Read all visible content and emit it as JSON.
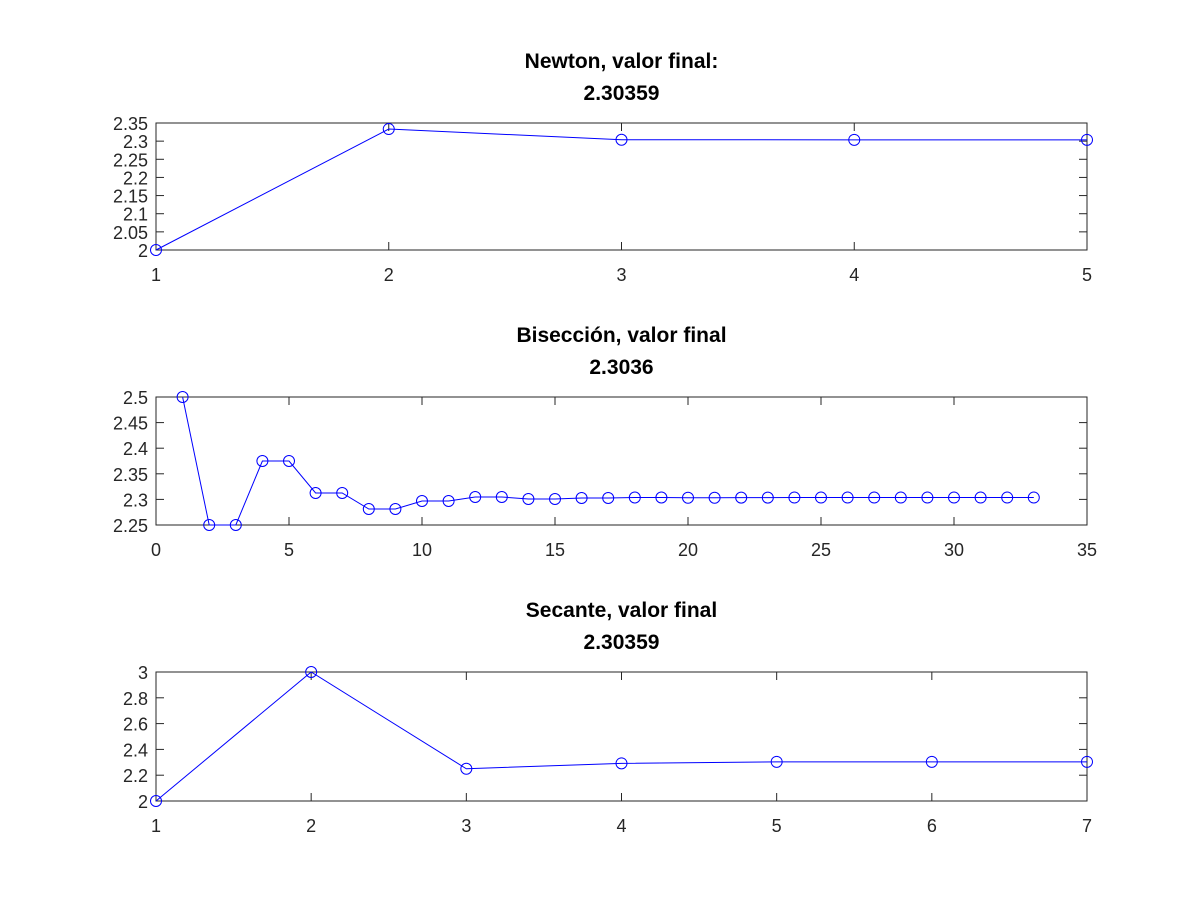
{
  "chart_data": [
    {
      "type": "line",
      "title_lines": [
        "Newton, valor final:",
        "2.30359"
      ],
      "xlabel": "",
      "ylabel": "",
      "xlim": [
        1,
        5
      ],
      "ylim": [
        2,
        2.35
      ],
      "xticks": [
        1,
        2,
        3,
        4,
        5
      ],
      "xtick_labels": [
        "1",
        "2",
        "3",
        "4",
        "5"
      ],
      "yticks": [
        2,
        2.05,
        2.1,
        2.15,
        2.2,
        2.25,
        2.3,
        2.35
      ],
      "ytick_labels": [
        "2",
        "2.05",
        "2.1",
        "2.15",
        "2.2",
        "2.25",
        "2.3",
        "2.35"
      ],
      "grid": false,
      "series": [
        {
          "color": "#0000ff",
          "marker": "circle",
          "x": [
            1,
            2,
            3,
            4,
            5
          ],
          "y": [
            2.0,
            2.3333,
            2.3038,
            2.3036,
            2.3036
          ]
        }
      ]
    },
    {
      "type": "line",
      "title_lines": [
        "Bisección, valor final",
        "2.3036"
      ],
      "xlabel": "",
      "ylabel": "",
      "xlim": [
        0,
        35
      ],
      "ylim": [
        2.25,
        2.5
      ],
      "xticks": [
        0,
        5,
        10,
        15,
        20,
        25,
        30,
        35
      ],
      "xtick_labels": [
        "0",
        "5",
        "10",
        "15",
        "20",
        "25",
        "30",
        "35"
      ],
      "yticks": [
        2.25,
        2.3,
        2.35,
        2.4,
        2.45,
        2.5
      ],
      "ytick_labels": [
        "2.25",
        "2.3",
        "2.35",
        "2.4",
        "2.45",
        "2.5"
      ],
      "grid": false,
      "series": [
        {
          "color": "#0000ff",
          "marker": "circle",
          "x": [
            1,
            2,
            3,
            4,
            5,
            6,
            7,
            8,
            9,
            10,
            11,
            12,
            13,
            14,
            15,
            16,
            17,
            18,
            19,
            20,
            21,
            22,
            23,
            24,
            25,
            26,
            27,
            28,
            29,
            30,
            31,
            32,
            33
          ],
          "y": [
            2.5,
            2.25,
            2.25,
            2.375,
            2.375,
            2.3125,
            2.3125,
            2.28125,
            2.28125,
            2.296875,
            2.296875,
            2.3047,
            2.3047,
            2.3008,
            2.3008,
            2.3027,
            2.3027,
            2.3037,
            2.3037,
            2.3032,
            2.3032,
            2.3035,
            2.3035,
            2.3036,
            2.3036,
            2.3036,
            2.3036,
            2.3036,
            2.3036,
            2.3036,
            2.3036,
            2.3036,
            2.3036
          ]
        }
      ]
    },
    {
      "type": "line",
      "title_lines": [
        "Secante, valor final",
        "2.30359"
      ],
      "xlabel": "",
      "ylabel": "",
      "xlim": [
        1,
        7
      ],
      "ylim": [
        2,
        3
      ],
      "xticks": [
        1,
        2,
        3,
        4,
        5,
        6,
        7
      ],
      "xtick_labels": [
        "1",
        "2",
        "3",
        "4",
        "5",
        "6",
        "7"
      ],
      "yticks": [
        2,
        2.2,
        2.4,
        2.6,
        2.8,
        3
      ],
      "ytick_labels": [
        "2",
        "2.2",
        "2.4",
        "2.6",
        "2.8",
        "3"
      ],
      "grid": false,
      "series": [
        {
          "color": "#0000ff",
          "marker": "circle",
          "x": [
            1,
            2,
            3,
            4,
            5,
            6,
            7
          ],
          "y": [
            2.0,
            3.0,
            2.25,
            2.292,
            2.3037,
            2.3036,
            2.3036
          ]
        }
      ]
    }
  ]
}
